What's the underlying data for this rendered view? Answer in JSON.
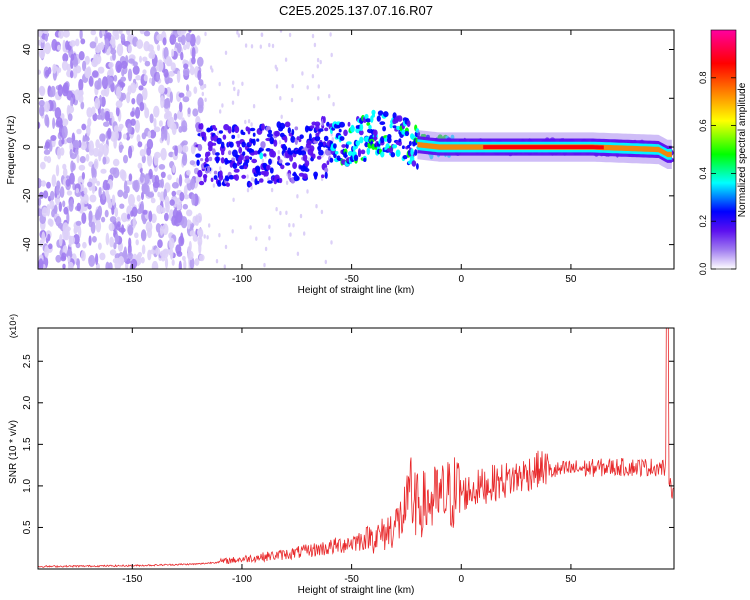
{
  "figure": {
    "title": "C2E5.2025.137.07.16.R07"
  },
  "chart_data": [
    {
      "type": "heatmap",
      "xlabel": "Height of straight line (km)",
      "ylabel": "Frequency (Hz)",
      "xlim": [
        -193,
        97
      ],
      "ylim": [
        -50,
        48
      ],
      "xticks": [
        -150,
        -100,
        -50,
        0,
        50
      ],
      "xtick_labels": [
        "-150",
        "-100",
        "-50",
        "0",
        "50"
      ],
      "yticks": [
        -40,
        -20,
        0,
        20,
        40
      ],
      "ytick_labels": [
        "-40",
        "-20",
        "0",
        "20",
        "40"
      ],
      "ridge": {
        "x": [
          -118,
          -100,
          -80,
          -60,
          -45,
          -40,
          -30,
          -20,
          -10,
          0,
          20,
          60,
          90,
          94
        ],
        "y": [
          -3,
          -4,
          -2,
          0,
          3,
          6,
          4,
          1,
          0,
          0,
          0,
          0,
          -1,
          -3
        ]
      },
      "colorbar": {
        "label": "Normalized spectral amplitude",
        "range": [
          0,
          1
        ],
        "ticks": [
          0.0,
          0.2,
          0.4,
          0.6,
          0.8
        ],
        "tick_labels": [
          "0.0",
          "0.2",
          "0.4",
          "0.6",
          "0.8"
        ],
        "colors": [
          "#ffffff",
          "#a07cf0",
          "#5c10f0",
          "#0000ff",
          "#00ffff",
          "#00ff00",
          "#ffff00",
          "#ff8000",
          "#ff0000",
          "#ff00a0"
        ]
      }
    },
    {
      "type": "line",
      "xlabel": "Height of straight line (km)",
      "ylabel": "SNR (10 * v/v)",
      "multiplier": "(x10⁴)",
      "xlim": [
        -193,
        97
      ],
      "ylim": [
        0,
        2.9
      ],
      "xticks": [
        -150,
        -100,
        -50,
        0,
        50
      ],
      "xtick_labels": [
        "-150",
        "-100",
        "-50",
        "0",
        "50"
      ],
      "yticks": [
        0.5,
        1.0,
        1.5,
        2.0,
        2.5
      ],
      "ytick_labels": [
        "0.5",
        "1.0",
        "1.5",
        "2.0",
        "2.5"
      ],
      "color": "#e8292b",
      "envelope": {
        "x": [
          -193,
          -150,
          -120,
          -100,
          -80,
          -60,
          -45,
          -35,
          -28,
          -25,
          -22,
          -20,
          -10,
          0,
          10,
          25,
          35,
          50,
          70,
          90,
          94,
          97
        ],
        "y": [
          0.02,
          0.03,
          0.05,
          0.1,
          0.15,
          0.22,
          0.3,
          0.4,
          0.55,
          0.7,
          0.75,
          0.72,
          0.8,
          0.9,
          1.0,
          1.1,
          1.2,
          1.25,
          1.27,
          1.27,
          1.25,
          0.9
        ]
      }
    }
  ]
}
